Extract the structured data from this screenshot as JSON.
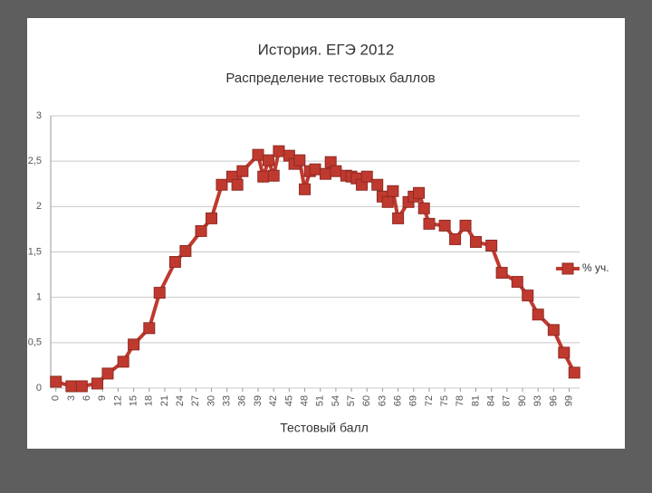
{
  "chart_data": {
    "type": "line",
    "title": "История. ЕГЭ 2012",
    "subtitle": "Распределение тестовых баллов",
    "x_label": "Тестовый балл",
    "legend": "right",
    "grid": true,
    "xlim": [
      -1,
      101
    ],
    "xticks": [
      0,
      3,
      6,
      9,
      12,
      15,
      18,
      21,
      24,
      27,
      30,
      33,
      36,
      39,
      42,
      45,
      48,
      51,
      54,
      57,
      60,
      63,
      66,
      69,
      72,
      75,
      78,
      81,
      84,
      87,
      90,
      93,
      96,
      99
    ],
    "ylim": [
      0,
      3
    ],
    "yticks": [
      0,
      {
        "value": 0.5,
        "label": "0,5"
      },
      1,
      {
        "value": 1.5,
        "label": "1,5"
      },
      2,
      {
        "value": 2.5,
        "label": "2,5"
      },
      3
    ],
    "x": [
      0,
      3,
      5,
      8,
      10,
      13,
      15,
      18,
      20,
      23,
      25,
      28,
      30,
      32,
      34,
      35,
      36,
      39,
      40,
      41,
      42,
      43,
      45,
      46,
      47,
      48,
      49,
      50,
      52,
      53,
      54,
      56,
      57,
      58,
      59,
      60,
      62,
      63,
      64,
      65,
      66,
      68,
      69,
      70,
      71,
      72,
      75,
      77,
      79,
      81,
      84,
      86,
      89,
      91,
      93,
      96,
      98,
      100
    ],
    "series": [
      {
        "name": "% уч.",
        "color": "#c0392f",
        "values": [
          0.07,
          0.02,
          0.02,
          0.05,
          0.16,
          0.29,
          0.48,
          0.66,
          1.05,
          1.39,
          1.51,
          1.73,
          1.87,
          2.24,
          2.33,
          2.24,
          2.39,
          2.57,
          2.33,
          2.51,
          2.34,
          2.61,
          2.56,
          2.47,
          2.51,
          2.19,
          2.39,
          2.41,
          2.36,
          2.49,
          2.39,
          2.34,
          2.33,
          2.31,
          2.24,
          2.33,
          2.24,
          2.11,
          2.05,
          2.17,
          1.87,
          2.05,
          2.11,
          2.15,
          1.98,
          1.81,
          1.79,
          1.64,
          1.79,
          1.61,
          1.57,
          1.27,
          1.17,
          1.02,
          0.81,
          0.64,
          0.39,
          0.17
        ]
      }
    ]
  }
}
